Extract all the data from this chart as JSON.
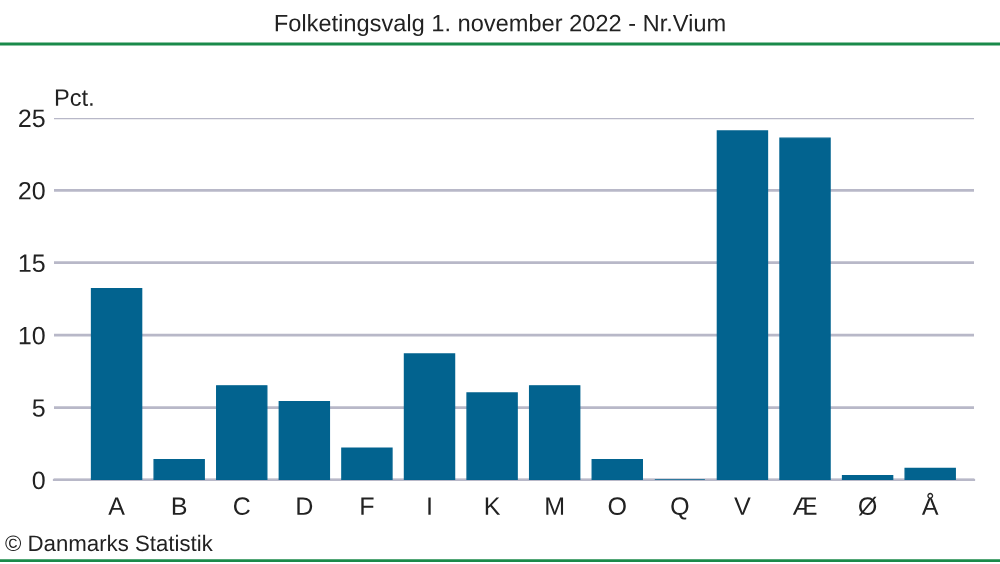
{
  "chart_data": {
    "type": "bar",
    "title": "Folketingsvalg 1. november 2022 - Nr.Vium",
    "ylabel": "Pct.",
    "categories": [
      "A",
      "B",
      "C",
      "D",
      "F",
      "I",
      "K",
      "M",
      "O",
      "Q",
      "V",
      "Æ",
      "Ø",
      "Å"
    ],
    "values": [
      13.2,
      1.4,
      6.5,
      5.4,
      2.2,
      8.7,
      6.0,
      6.5,
      1.4,
      0,
      24.1,
      23.6,
      0.3,
      0.8
    ],
    "color": "#02638f",
    "ylim": [
      0,
      25
    ],
    "yticks": [
      0,
      5,
      10,
      15,
      20,
      25
    ],
    "grid": "y",
    "annotations": [
      "© Danmarks Statistik"
    ]
  }
}
